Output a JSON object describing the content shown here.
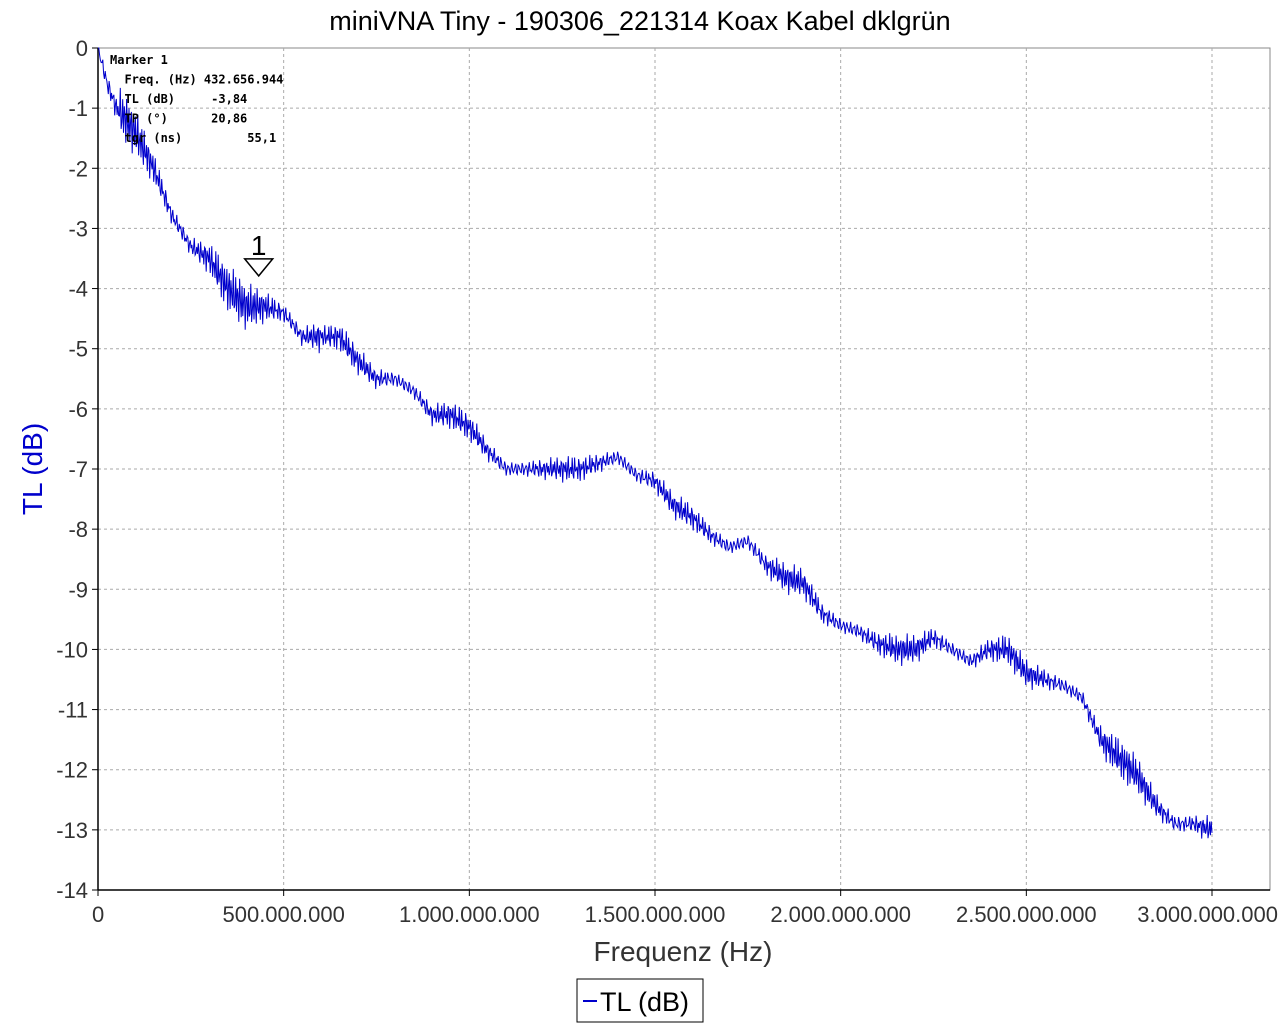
{
  "chart_data": {
    "type": "line",
    "title": "miniVNA Tiny - 190306_221314 Koax Kabel dklgrün",
    "xlabel": "Frequenz (Hz)",
    "ylabel": "TL (dB)",
    "xlim": [
      0,
      3000000000
    ],
    "ylim": [
      -14,
      0
    ],
    "x_ticks": [
      0,
      500000000,
      1000000000,
      1500000000,
      2000000000,
      2500000000,
      3000000000
    ],
    "x_tick_labels": [
      "0",
      "500.000.000",
      "1.000.000.000",
      "1.500.000.000",
      "2.000.000.000",
      "2.500.000.000",
      "3.000.000.000"
    ],
    "y_ticks": [
      0,
      -1,
      -2,
      -3,
      -4,
      -5,
      -6,
      -7,
      -8,
      -9,
      -10,
      -11,
      -12,
      -13,
      -14
    ],
    "y_tick_labels": [
      "0",
      "-1",
      "-2",
      "-3",
      "-4",
      "-5",
      "-6",
      "-7",
      "-8",
      "-9",
      "-10",
      "-11",
      "-12",
      "-13",
      "-14"
    ],
    "grid": true,
    "legend": "bottom-center",
    "line_color": "#0000cc",
    "series": [
      {
        "name": "TL (dB)",
        "x": [
          0,
          25000000,
          50000000,
          100000000,
          150000000,
          200000000,
          250000000,
          300000000,
          350000000,
          400000000,
          450000000,
          500000000,
          550000000,
          600000000,
          650000000,
          700000000,
          750000000,
          800000000,
          850000000,
          900000000,
          950000000,
          1000000000,
          1050000000,
          1100000000,
          1150000000,
          1200000000,
          1250000000,
          1300000000,
          1350000000,
          1400000000,
          1450000000,
          1500000000,
          1550000000,
          1600000000,
          1650000000,
          1700000000,
          1750000000,
          1800000000,
          1850000000,
          1900000000,
          1950000000,
          2000000000,
          2050000000,
          2100000000,
          2150000000,
          2200000000,
          2250000000,
          2300000000,
          2350000000,
          2400000000,
          2450000000,
          2500000000,
          2550000000,
          2600000000,
          2650000000,
          2700000000,
          2750000000,
          2800000000,
          2850000000,
          2900000000,
          2950000000,
          3000000000
        ],
        "values": [
          0,
          -0.6,
          -1.0,
          -1.4,
          -2.0,
          -2.8,
          -3.3,
          -3.5,
          -4.0,
          -4.3,
          -4.3,
          -4.4,
          -4.8,
          -4.8,
          -4.8,
          -5.2,
          -5.5,
          -5.5,
          -5.7,
          -6.1,
          -6.1,
          -6.3,
          -6.7,
          -7.0,
          -7.0,
          -7.0,
          -7.0,
          -7.0,
          -6.9,
          -6.8,
          -7.1,
          -7.2,
          -7.6,
          -7.8,
          -8.1,
          -8.3,
          -8.2,
          -8.6,
          -8.8,
          -8.9,
          -9.4,
          -9.6,
          -9.7,
          -9.9,
          -10.0,
          -10.0,
          -9.8,
          -10.0,
          -10.2,
          -10.0,
          -10.0,
          -10.4,
          -10.5,
          -10.6,
          -10.8,
          -11.5,
          -11.8,
          -12.1,
          -12.6,
          -12.9,
          -12.9,
          -13.0
        ]
      }
    ],
    "marker": {
      "label": "1",
      "x": 432656944,
      "y": -3.84,
      "readout_lines": [
        "Marker 1",
        "  Freq. (Hz) 432.656.944",
        "  TL (dB)     -3,84",
        "  TP (°)      20,86",
        "  tgr (ns)         55,1"
      ]
    }
  }
}
